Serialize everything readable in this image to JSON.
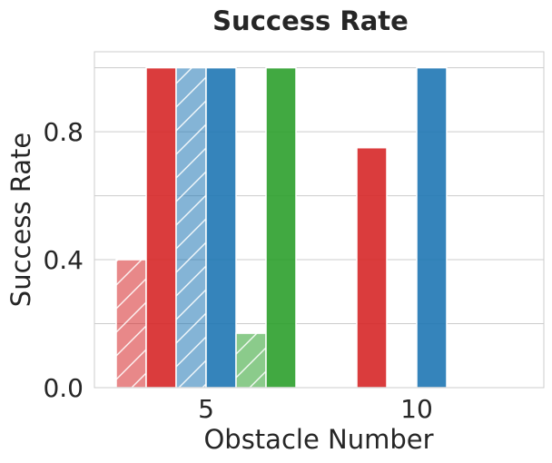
{
  "chart_data": {
    "type": "bar",
    "title": "Success Rate",
    "xlabel": "Obstacle Number",
    "ylabel": "Success Rate",
    "categories": [
      "5",
      "10"
    ],
    "ylim": [
      0,
      1.05
    ],
    "yticks": [
      0.0,
      0.4,
      0.8
    ],
    "yticks_labels": [
      "0.0",
      "0.4",
      "0.8"
    ],
    "grid": true,
    "series": [
      {
        "color": "#d62728",
        "hatched": true,
        "values": [
          0.4,
          0.0
        ]
      },
      {
        "color": "#d62728",
        "hatched": false,
        "values": [
          1.0,
          0.75
        ]
      },
      {
        "color": "#1f77b4",
        "hatched": true,
        "values": [
          1.0,
          0.0
        ]
      },
      {
        "color": "#1f77b4",
        "hatched": false,
        "values": [
          1.0,
          1.0
        ]
      },
      {
        "color": "#2ca02c",
        "hatched": true,
        "values": [
          0.17,
          0.0
        ]
      },
      {
        "color": "#2ca02c",
        "hatched": false,
        "values": [
          1.0,
          0.0
        ]
      }
    ]
  }
}
